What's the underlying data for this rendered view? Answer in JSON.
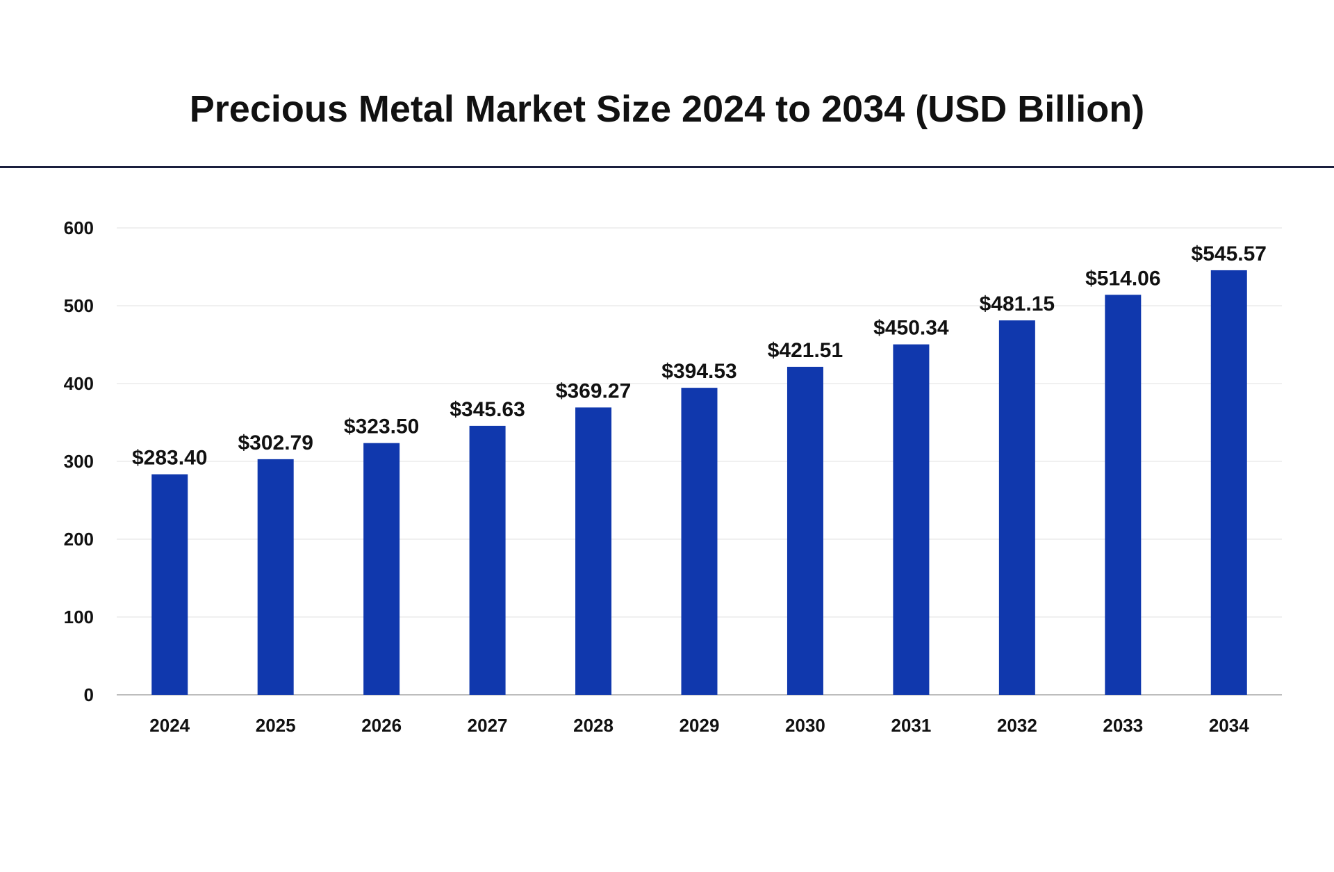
{
  "chart_data": {
    "type": "bar",
    "title": "Precious Metal Market Size 2024 to 2034 (USD Billion)",
    "xlabel": "",
    "ylabel": "",
    "categories": [
      "2024",
      "2025",
      "2026",
      "2027",
      "2028",
      "2029",
      "2030",
      "2031",
      "2032",
      "2033",
      "2034"
    ],
    "values": [
      283.4,
      302.79,
      323.5,
      345.63,
      369.27,
      394.53,
      421.51,
      450.34,
      481.15,
      514.06,
      545.57
    ],
    "data_labels": [
      "$283.40",
      "$302.79",
      "$323.50",
      "$345.63",
      "$369.27",
      "$394.53",
      "$421.51",
      "$450.34",
      "$481.15",
      "$514.06",
      "$545.57"
    ],
    "ylim": [
      0,
      600
    ],
    "yticks": [
      "0",
      "100",
      "200",
      "300",
      "400",
      "500",
      "600"
    ],
    "grid": true,
    "legend": "none",
    "bar_color": "#1038ad"
  }
}
